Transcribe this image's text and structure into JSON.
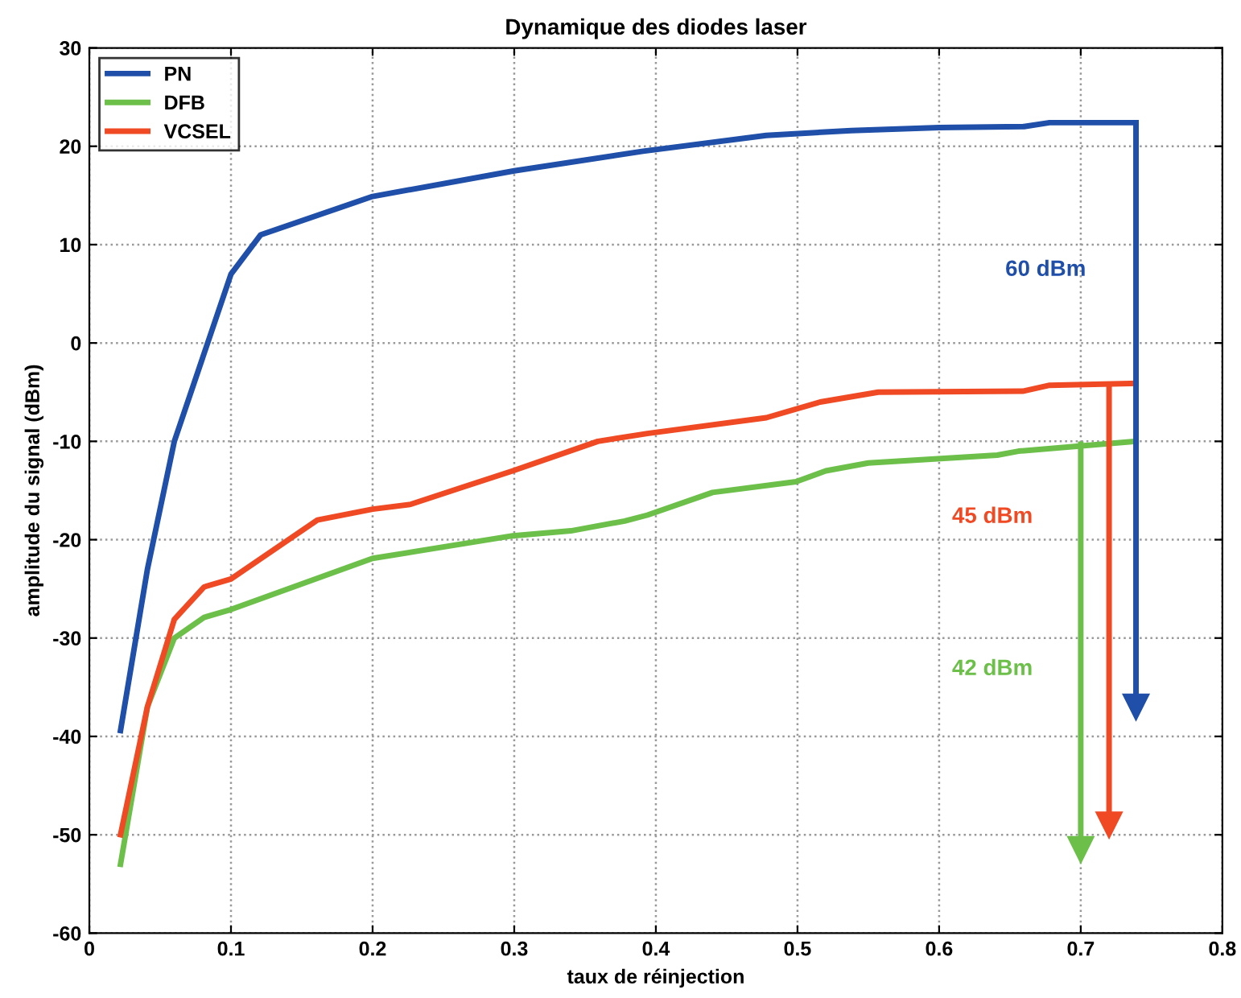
{
  "chart_data": {
    "type": "line",
    "title": "Dynamique des diodes laser",
    "xlabel": "taux de réinjection",
    "ylabel": "amplitude du signal (dBm)",
    "xlim": [
      0,
      0.8
    ],
    "xticks": [
      0,
      0.1,
      0.2,
      0.3,
      0.4,
      0.5,
      0.6,
      0.7,
      0.8
    ],
    "ylim": [
      -60,
      30
    ],
    "yticks": [
      -60,
      -50,
      -40,
      -30,
      -20,
      -10,
      0,
      10,
      20,
      30
    ],
    "grid": true,
    "legend": "top left",
    "marker": "none",
    "line_style": "solid",
    "series": [
      {
        "name": "PN",
        "color": "#1f4fa8",
        "x": [
          0.022,
          0.041,
          0.06,
          0.1,
          0.121,
          0.2,
          0.3,
          0.391,
          0.478,
          0.538,
          0.6,
          0.66,
          0.678,
          0.739
        ],
        "values": [
          -39.4,
          -23,
          -10,
          7.0,
          11,
          14.9,
          17.5,
          19.5,
          21.1,
          21.6,
          21.9,
          22.0,
          22.4,
          22.4
        ]
      },
      {
        "name": "DFB",
        "color": "#6cc04a",
        "x": [
          0.022,
          0.041,
          0.06,
          0.081,
          0.1,
          0.2,
          0.299,
          0.34,
          0.378,
          0.394,
          0.44,
          0.499,
          0.52,
          0.55,
          0.641,
          0.656,
          0.739
        ],
        "values": [
          -53.0,
          -37,
          -30.0,
          -27.9,
          -27.1,
          -21.9,
          -19.6,
          -19.1,
          -18.1,
          -17.5,
          -15.2,
          -14.1,
          -13.0,
          -12.2,
          -11.4,
          -11.0,
          -10.0
        ]
      },
      {
        "name": "VCSEL",
        "color": "#f04a24",
        "x": [
          0.022,
          0.041,
          0.06,
          0.081,
          0.1,
          0.161,
          0.2,
          0.227,
          0.265,
          0.299,
          0.359,
          0.394,
          0.478,
          0.516,
          0.557,
          0.659,
          0.678,
          0.739
        ],
        "values": [
          -50.0,
          -37,
          -28.1,
          -24.8,
          -24.0,
          -18.0,
          -16.9,
          -16.4,
          -14.6,
          -13.0,
          -10.0,
          -9.2,
          -7.6,
          -6.0,
          -5.0,
          -4.9,
          -4.3,
          -4.1
        ]
      },
      {
        "type": "line",
        "color": "#1f4fa8",
        "marker": "triangle",
        "x": [
          0.739,
          0.739
        ],
        "values": [
          22.4,
          -37
        ]
      },
      {
        "type": "line",
        "color": "#f04a24",
        "marker": "triangle",
        "x": [
          0.72,
          0.72
        ],
        "values": [
          -4.2,
          -49
        ]
      },
      {
        "type": "line",
        "color": "#6cc04a",
        "marker": "triangle",
        "x": [
          0.7,
          0.7
        ],
        "values": [
          -10.3,
          -51.5
        ]
      }
    ],
    "annotations": [
      "60 dBm",
      "45 dBm",
      "42 dBm"
    ]
  }
}
